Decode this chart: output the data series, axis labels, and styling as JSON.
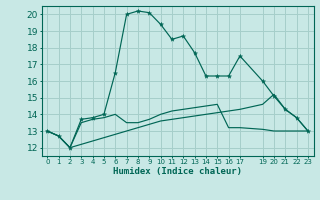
{
  "xlabel": "Humidex (Indice chaleur)",
  "ylim": [
    11.5,
    20.5
  ],
  "xlim": [
    -0.5,
    23.5
  ],
  "bg_color": "#c8e8e5",
  "grid_color": "#a5ceca",
  "line_color": "#006655",
  "s1_x": [
    0,
    1,
    2,
    3,
    4,
    5,
    6,
    7,
    8,
    9,
    10,
    11,
    12,
    13,
    14,
    15,
    16,
    17,
    19,
    20,
    21,
    22,
    23
  ],
  "s1_y": [
    13.0,
    12.7,
    12.0,
    13.7,
    13.8,
    14.0,
    16.5,
    20.0,
    20.2,
    20.1,
    19.4,
    18.5,
    18.7,
    17.7,
    16.3,
    16.3,
    16.3,
    17.5,
    16.0,
    15.1,
    14.3,
    13.8,
    13.0
  ],
  "s2_x": [
    0,
    1,
    2,
    3,
    4,
    5,
    6,
    7,
    8,
    9,
    10,
    11,
    12,
    13,
    14,
    15,
    16,
    17,
    19,
    20,
    21,
    22,
    23
  ],
  "s2_y": [
    13.0,
    12.7,
    12.0,
    13.5,
    13.7,
    13.8,
    14.0,
    13.5,
    13.5,
    13.7,
    14.0,
    14.2,
    14.3,
    14.4,
    14.5,
    14.6,
    13.2,
    13.2,
    13.1,
    13.0,
    13.0,
    13.0,
    13.0
  ],
  "s3_x": [
    0,
    1,
    2,
    3,
    4,
    5,
    6,
    7,
    8,
    9,
    10,
    11,
    12,
    13,
    14,
    15,
    16,
    17,
    19,
    20,
    21,
    22,
    23
  ],
  "s3_y": [
    13.0,
    12.7,
    12.0,
    12.2,
    12.4,
    12.6,
    12.8,
    13.0,
    13.2,
    13.4,
    13.6,
    13.7,
    13.8,
    13.9,
    14.0,
    14.1,
    14.2,
    14.3,
    14.6,
    15.2,
    14.3,
    13.8,
    13.0
  ],
  "yticks": [
    12,
    13,
    14,
    15,
    16,
    17,
    18,
    19,
    20
  ],
  "xticks": [
    0,
    1,
    2,
    3,
    4,
    5,
    6,
    7,
    8,
    9,
    10,
    11,
    12,
    13,
    14,
    15,
    16,
    17,
    19,
    20,
    21,
    22,
    23
  ],
  "xlabel_fontsize": 6.5,
  "ytick_fontsize": 6.5,
  "xtick_fontsize": 5.0
}
